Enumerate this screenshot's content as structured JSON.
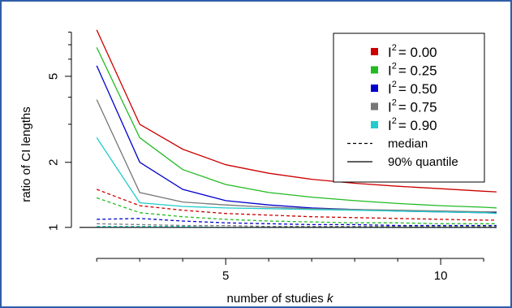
{
  "chart_data": {
    "type": "line",
    "xlabel": "number of studies",
    "xlabel_var": "k",
    "ylabel": "ratio of CI lengths",
    "xlim": [
      1.6,
      11.3
    ],
    "ylim": [
      0.77,
      9.0
    ],
    "y_scale": "log",
    "x_ticks": [
      5,
      10
    ],
    "x_minor_ticks": [
      2,
      3,
      4,
      6,
      7,
      8,
      9,
      11
    ],
    "y_ticks": [
      1,
      2,
      5
    ],
    "y_minor_ticks": [
      3,
      4,
      6,
      7,
      8
    ],
    "reference_line_y": 1,
    "grid": false,
    "legend_position": "top-right",
    "series": [
      {
        "name": "I2 = 0.00",
        "stat": "90% quantile",
        "color": "#cc0000",
        "x": [
          2,
          3,
          4,
          5,
          6,
          7,
          8,
          9,
          10,
          11,
          11.3
        ],
        "values": [
          8.2,
          3.0,
          2.3,
          1.95,
          1.78,
          1.67,
          1.6,
          1.55,
          1.51,
          1.47,
          1.46
        ]
      },
      {
        "name": "I2 = 0.25",
        "stat": "90% quantile",
        "color": "#22bb22",
        "x": [
          2,
          3,
          4,
          5,
          6,
          7,
          8,
          9,
          10,
          11,
          11.3
        ],
        "values": [
          6.8,
          2.6,
          1.85,
          1.58,
          1.45,
          1.38,
          1.33,
          1.29,
          1.26,
          1.24,
          1.23
        ]
      },
      {
        "name": "I2 = 0.50",
        "stat": "90% quantile",
        "color": "#0000cc",
        "x": [
          2,
          3,
          4,
          5,
          6,
          7,
          8,
          9,
          10,
          11,
          11.3
        ],
        "values": [
          5.6,
          2.0,
          1.5,
          1.33,
          1.27,
          1.23,
          1.21,
          1.19,
          1.18,
          1.17,
          1.17
        ]
      },
      {
        "name": "I2 = 0.75",
        "stat": "90% quantile",
        "color": "#777777",
        "x": [
          2,
          3,
          4,
          5,
          6,
          7,
          8,
          9,
          10,
          11,
          11.3
        ],
        "values": [
          3.9,
          1.45,
          1.31,
          1.27,
          1.24,
          1.22,
          1.21,
          1.2,
          1.19,
          1.18,
          1.18
        ]
      },
      {
        "name": "I2 = 0.90",
        "stat": "90% quantile",
        "color": "#22cccc",
        "x": [
          2,
          3,
          4,
          5,
          6,
          7,
          8,
          9,
          10,
          11,
          11.3
        ],
        "values": [
          2.6,
          1.3,
          1.25,
          1.23,
          1.22,
          1.21,
          1.2,
          1.19,
          1.18,
          1.17,
          1.16
        ]
      },
      {
        "name": "I2 = 0.00",
        "stat": "median",
        "color": "#cc0000",
        "x": [
          2,
          3,
          4,
          5,
          6,
          7,
          8,
          9,
          10,
          11,
          11.3
        ],
        "values": [
          1.5,
          1.26,
          1.2,
          1.16,
          1.14,
          1.12,
          1.11,
          1.1,
          1.09,
          1.08,
          1.08
        ]
      },
      {
        "name": "I2 = 0.25",
        "stat": "median",
        "color": "#22bb22",
        "x": [
          2,
          3,
          4,
          5,
          6,
          7,
          8,
          9,
          10,
          11,
          11.3
        ],
        "values": [
          1.37,
          1.17,
          1.12,
          1.09,
          1.07,
          1.06,
          1.05,
          1.05,
          1.04,
          1.04,
          1.04
        ]
      },
      {
        "name": "I2 = 0.50",
        "stat": "median",
        "color": "#0000cc",
        "x": [
          2,
          3,
          4,
          5,
          6,
          7,
          8,
          9,
          10,
          11,
          11.3
        ],
        "values": [
          1.09,
          1.1,
          1.07,
          1.05,
          1.04,
          1.03,
          1.03,
          1.02,
          1.02,
          1.02,
          1.02
        ]
      },
      {
        "name": "I2 = 0.75",
        "stat": "median",
        "color": "#777777",
        "x": [
          2,
          3,
          4,
          5,
          6,
          7,
          8,
          9,
          10,
          11,
          11.3
        ],
        "values": [
          1.04,
          1.03,
          1.02,
          1.02,
          1.01,
          1.01,
          1.01,
          1.01,
          1.01,
          1.01,
          1.01
        ]
      },
      {
        "name": "I2 = 0.90",
        "stat": "median",
        "color": "#22cccc",
        "x": [
          2,
          3,
          4,
          5,
          6,
          7,
          8,
          9,
          10,
          11,
          11.3
        ],
        "values": [
          1.01,
          1.01,
          1.01,
          1.0,
          1.0,
          1.0,
          1.0,
          1.0,
          1.0,
          1.0,
          1.0
        ]
      }
    ],
    "legend": {
      "entries": [
        {
          "symbol": "I",
          "exponent": "2",
          "suffix": "= 0.00",
          "color": "#cc0000"
        },
        {
          "symbol": "I",
          "exponent": "2",
          "suffix": "= 0.25",
          "color": "#22bb22"
        },
        {
          "symbol": "I",
          "exponent": "2",
          "suffix": "= 0.50",
          "color": "#0000cc"
        },
        {
          "symbol": "I",
          "exponent": "2",
          "suffix": "= 0.75",
          "color": "#777777"
        },
        {
          "symbol": "I",
          "exponent": "2",
          "suffix": "= 0.90",
          "color": "#22cccc"
        }
      ],
      "line_styles": [
        {
          "label": "median",
          "dash": "dashed"
        },
        {
          "label": "90% quantile",
          "dash": "solid"
        }
      ]
    }
  }
}
